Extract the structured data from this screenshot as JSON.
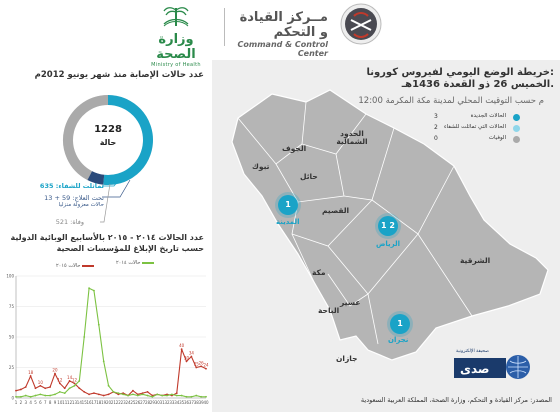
{
  "header": {
    "moh_ar": "وزارة الصحة",
    "moh_en": "Ministry of Health",
    "ccc_ar": "مــركز القيادة و التحكم",
    "ccc_en": "Command & Control Center"
  },
  "news": {
    "title_line1": "خريطة الوضع اليومي لفيروس كورونا:",
    "title_line2": "الخميس 26 ذو القعدة 1436هـ.",
    "time": "12:00 م حسب التوقيت المحلي لمدينة مكة المكرمة"
  },
  "legend": [
    {
      "label": "الحالات الجديدة",
      "value": "3",
      "color": "#1aa3c7"
    },
    {
      "label": "الحالات التي تماثلت للشفاء",
      "value": "2",
      "color": "#8fd6ea"
    },
    {
      "label": "الوفيات",
      "value": "0",
      "color": "#aaaaaa"
    }
  ],
  "map": {
    "cities": [
      "الحدود الشمالية",
      "الجوف",
      "تبوك",
      "حائل",
      "القصيم",
      "المدينة",
      "الرياض",
      "الشرقية",
      "مكة",
      "الباحة",
      "عسير",
      "جازان",
      "نجران"
    ],
    "pins": [
      {
        "city": "المدينة",
        "label": "1"
      },
      {
        "city": "الرياض",
        "label": "1 2"
      },
      {
        "city": "نجران",
        "label": "1"
      }
    ]
  },
  "summary": {
    "title": "عدد حالات الإصابة منذ شهر يونيو  2012م",
    "total": "1228",
    "total_label": "حالة",
    "recovered": "تماثلت للشفاء: 635",
    "treatment_line1": "تحت العلاج: 59 + 13",
    "treatment_line2": "حالات معزولة منزليا",
    "deaths": "وفاة: 521",
    "values": {
      "recovered": 635,
      "treatment": 72,
      "deaths": 521
    }
  },
  "chart": {
    "title_line1": "عدد الحالات ٢٠١٤ - ٢٠١٥ بالأسابيع الوبائية الدولية",
    "title_line2": "حسب تاريخ الإبلاغ للمؤسسات الصحية",
    "legend_2015": "حالات ٢٠١٥",
    "legend_2014": "حالات ٢٠١٤"
  },
  "chart_data": {
    "type": "line",
    "x": [
      1,
      2,
      3,
      4,
      5,
      6,
      7,
      8,
      9,
      10,
      11,
      12,
      13,
      14,
      15,
      16,
      17,
      18,
      19,
      20,
      21,
      22,
      23,
      24,
      25,
      26,
      27,
      28,
      29,
      30,
      31,
      32,
      33,
      34,
      35,
      36,
      37,
      38,
      39,
      40
    ],
    "ylim": [
      0,
      100
    ],
    "yticks": [
      0,
      25,
      50,
      75,
      100
    ],
    "series": [
      {
        "name": "حالات ٢٠١٥",
        "color": "#c0392b",
        "values": [
          6,
          7,
          9,
          18,
          8,
          10,
          8,
          9,
          20,
          12,
          8,
          14,
          12,
          8,
          5,
          3,
          4,
          3,
          2,
          3,
          5,
          3,
          4,
          2,
          6,
          3,
          4,
          5,
          2,
          3,
          2,
          3,
          2,
          4,
          40,
          30,
          34,
          25,
          26,
          24
        ]
      },
      {
        "name": "حالات ٢٠١٤",
        "color": "#7cc242",
        "values": [
          1,
          1,
          2,
          1,
          2,
          3,
          2,
          2,
          3,
          5,
          4,
          8,
          10,
          14,
          50,
          90,
          88,
          60,
          30,
          10,
          5,
          4,
          3,
          2,
          3,
          2,
          3,
          2,
          1,
          3,
          2,
          2,
          3,
          2,
          2,
          1,
          1,
          2,
          1,
          1
        ]
      }
    ]
  },
  "footer": {
    "source": "المصدر: مركز القيادة و التحكم، وزارة الصحة، المملكة العربية السعودية",
    "badge": "صدى",
    "badge_sub": "صحيفة الإلكترونية"
  }
}
